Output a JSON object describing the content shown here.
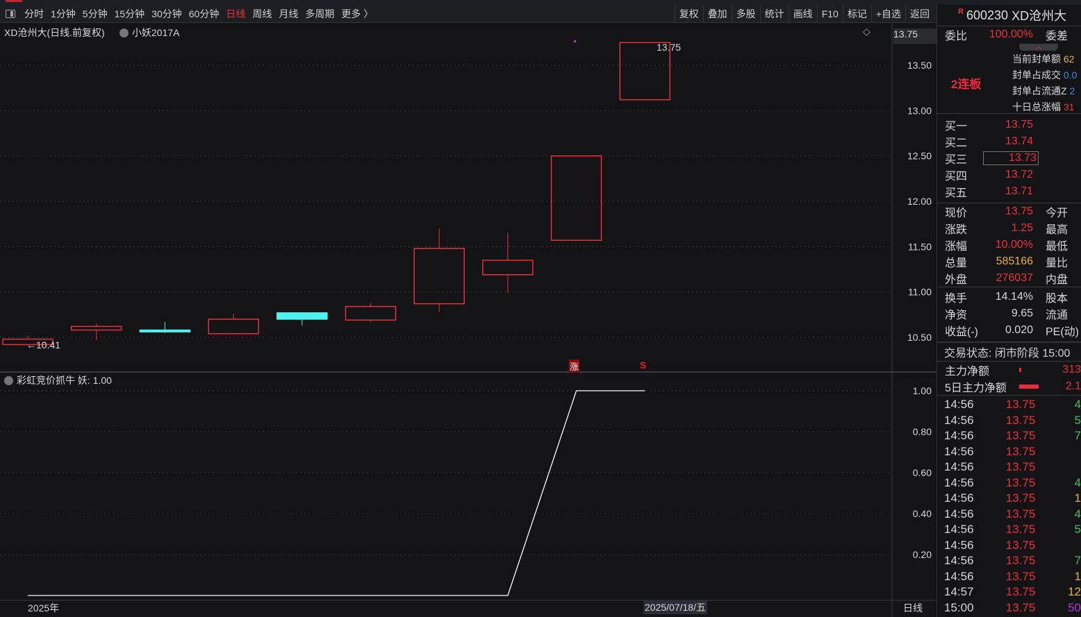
{
  "toolbar": {
    "periods": [
      "分时",
      "1分钟",
      "5分钟",
      "15分钟",
      "30分钟",
      "60分钟",
      "日线",
      "周线",
      "月线",
      "多周期",
      "更多 〉"
    ],
    "active": "日线",
    "actions": [
      "复权",
      "叠加",
      "多股",
      "统计",
      "画线",
      "F10",
      "标记",
      "+自选",
      "返回"
    ]
  },
  "main_chart": {
    "title": "XD沧州大(日线.前复权)",
    "indicator_name": "小妖2017A",
    "last_label": "13.75",
    "low_label": "←10.41",
    "marker_zhang": "涨",
    "marker_s": "S",
    "cursor_price": "13.75"
  },
  "sub_chart": {
    "title": "彩虹竞价抓牛",
    "value_label": "妖: 1.00"
  },
  "x_axis": {
    "left_label": "2025年",
    "cursor_date": "2025/07/18/五",
    "period_label": "日线"
  },
  "chart_data": {
    "type": "candlestick",
    "price_axis": {
      "ticks": [
        13.5,
        13.0,
        12.5,
        12.0,
        11.5,
        11.0,
        10.5
      ],
      "ylim": [
        10.2,
        13.85
      ]
    },
    "candles": [
      {
        "o": 10.42,
        "c": 10.48,
        "h": 10.52,
        "l": 10.41
      },
      {
        "o": 10.58,
        "c": 10.62,
        "h": 10.65,
        "l": 10.47
      },
      {
        "o": 10.58,
        "c": 10.56,
        "h": 10.67,
        "l": 10.55
      },
      {
        "o": 10.54,
        "c": 10.7,
        "h": 10.76,
        "l": 10.54
      },
      {
        "o": 10.77,
        "c": 10.7,
        "h": 10.77,
        "l": 10.63
      },
      {
        "o": 10.69,
        "c": 10.84,
        "h": 10.88,
        "l": 10.67
      },
      {
        "o": 10.87,
        "c": 11.48,
        "h": 11.7,
        "l": 10.78
      },
      {
        "o": 11.19,
        "c": 11.35,
        "h": 11.65,
        "l": 10.99
      },
      {
        "o": 11.57,
        "c": 12.5,
        "h": 12.5,
        "l": 11.57
      },
      {
        "o": 13.12,
        "c": 13.75,
        "h": 13.75,
        "l": 13.12
      }
    ],
    "indicator": {
      "name": "妖",
      "values": [
        0,
        0,
        0,
        0,
        0,
        0,
        0,
        0,
        1,
        1
      ],
      "ticks": [
        1.0,
        0.8,
        0.6,
        0.4,
        0.2
      ],
      "ylim": [
        0,
        1.05
      ]
    },
    "colors": {
      "up": "#e8313f",
      "down": "#4ff0f0",
      "line": "#ffffff"
    }
  },
  "panel": {
    "code": "600230",
    "name": "XD沧州大",
    "badge": "R",
    "weibi_label": "委比",
    "weibi": "100.00%",
    "weicha_label": "委差",
    "streak": "2连板",
    "seal": [
      {
        "label": "当前封单额",
        "value": "62",
        "color": "yel"
      },
      {
        "label": "封单占成交",
        "value": "0.0",
        "color": "blu"
      },
      {
        "label": "封单占流通Z",
        "value": "2",
        "color": "blu"
      },
      {
        "label": "十日总涨幅",
        "value": "31",
        "color": "red"
      }
    ],
    "bids": [
      {
        "label": "买一",
        "price": "13.75"
      },
      {
        "label": "买二",
        "price": "13.74"
      },
      {
        "label": "买三",
        "price": "13.73"
      },
      {
        "label": "买四",
        "price": "13.72"
      },
      {
        "label": "买五",
        "price": "13.71"
      }
    ],
    "quote1": [
      {
        "l": "现价",
        "v": "13.75",
        "r": "今开",
        "c": "red"
      },
      {
        "l": "涨跌",
        "v": "1.25",
        "r": "最高",
        "c": "red"
      },
      {
        "l": "涨幅",
        "v": "10.00%",
        "r": "最低",
        "c": "red"
      },
      {
        "l": "总量",
        "v": "585166",
        "r": "量比",
        "c": "yel"
      },
      {
        "l": "外盘",
        "v": "276037",
        "r": "内盘",
        "c": "red"
      }
    ],
    "quote2": [
      {
        "l": "换手",
        "v": "14.14%",
        "r": "股本",
        "c": "wht"
      },
      {
        "l": "净资",
        "v": "9.65",
        "r": "流通",
        "c": "wht"
      },
      {
        "l": "收益(-)",
        "v": "0.020",
        "r": "PE(动)",
        "c": "wht"
      }
    ],
    "status": "交易状态: 闭市阶段 15:00",
    "flow": [
      {
        "l": "主力净额",
        "v": "313"
      },
      {
        "l": "5日主力净额",
        "v": "2.1"
      }
    ],
    "ticks": [
      {
        "t": "14:56",
        "p": "13.75",
        "v": "4",
        "c": "#3fbf5f"
      },
      {
        "t": "14:56",
        "p": "13.75",
        "v": "5",
        "c": "#3fbf5f"
      },
      {
        "t": "14:56",
        "p": "13.75",
        "v": "7",
        "c": "#3fbf5f"
      },
      {
        "t": "14:56",
        "p": "13.75",
        "v": "",
        "c": "#3fbf5f"
      },
      {
        "t": "14:56",
        "p": "13.75",
        "v": "",
        "c": "#3fbf5f"
      },
      {
        "t": "14:56",
        "p": "13.75",
        "v": "4",
        "c": "#3fbf5f"
      },
      {
        "t": "14:56",
        "p": "13.75",
        "v": "1",
        "c": "#e6b33a"
      },
      {
        "t": "14:56",
        "p": "13.75",
        "v": "4",
        "c": "#3fbf5f"
      },
      {
        "t": "14:56",
        "p": "13.75",
        "v": "5",
        "c": "#3fbf5f"
      },
      {
        "t": "14:56",
        "p": "13.75",
        "v": "",
        "c": "#3fbf5f"
      },
      {
        "t": "14:56",
        "p": "13.75",
        "v": "7",
        "c": "#3fbf5f"
      },
      {
        "t": "14:56",
        "p": "13.75",
        "v": "1",
        "c": "#e6b33a"
      },
      {
        "t": "14:57",
        "p": "13.75",
        "v": "12",
        "c": "#e6b33a"
      },
      {
        "t": "15:00",
        "p": "13.75",
        "v": "50",
        "c": "#b03ad0"
      }
    ]
  }
}
